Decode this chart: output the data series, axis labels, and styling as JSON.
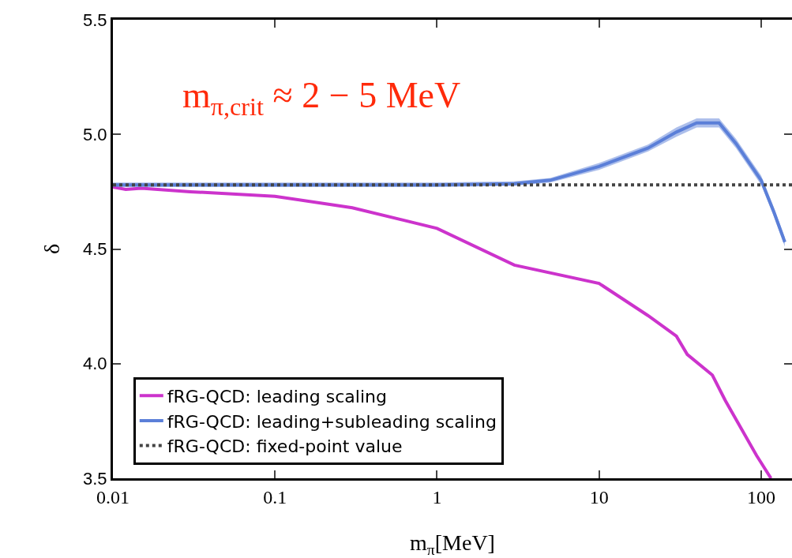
{
  "chart_data": {
    "type": "line",
    "xlabel": "m$_{π}$[MeV]",
    "ylabel": "δ",
    "log": "x",
    "xlim": [
      0.01,
      155
    ],
    "xticks": [
      0.01,
      0.1,
      1,
      10,
      100
    ],
    "ylim": [
      3.5,
      5.5
    ],
    "yticks": [
      3.5,
      {
        "value": 4,
        "label": "4.0"
      },
      4.5,
      {
        "value": 5,
        "label": "5.0"
      },
      5.5
    ],
    "grid": false,
    "legend": "bottom left",
    "line_style": "solid",
    "marker": "none",
    "annotations": [
      "m$_{π,crit}$ ≈ 2 − 5 MeV"
    ],
    "series": [
      {
        "name": "fRG-QCD: leading scaling",
        "color": "#cc33cc",
        "x": [
          0.01,
          0.012,
          0.015,
          0.03,
          0.1,
          0.3,
          1,
          3,
          10,
          20,
          30,
          35,
          50,
          60,
          93.6,
          115
        ],
        "values": [
          4.77,
          4.76,
          4.765,
          4.75,
          4.73,
          4.68,
          4.59,
          4.43,
          4.35,
          4.21,
          4.12,
          4.04,
          3.95,
          3.84,
          3.6,
          3.5
        ]
      },
      {
        "name": "fRG-QCD: leading+subleading scaling",
        "color": "#5b7fd8",
        "x": [
          0.01,
          0.1,
          1,
          3,
          5,
          10,
          20,
          30,
          40,
          55,
          70,
          100,
          120,
          140
        ],
        "values": [
          4.78,
          4.78,
          4.78,
          4.785,
          4.8,
          4.86,
          4.94,
          5.01,
          5.05,
          5.05,
          4.96,
          4.8,
          4.66,
          4.53
        ],
        "lower": [
          4.77,
          4.77,
          4.77,
          4.775,
          4.79,
          4.845,
          4.925,
          4.99,
          5.03,
          5.03,
          4.94,
          4.78,
          4.64,
          4.51
        ],
        "upper": [
          4.79,
          4.79,
          4.79,
          4.795,
          4.81,
          4.875,
          4.955,
          5.03,
          5.07,
          5.07,
          4.98,
          4.82,
          4.68,
          4.55
        ]
      },
      {
        "name": "fRG-QCD: fixed-point value",
        "color": "#444444",
        "line_style": "dotted",
        "x": [
          0.01,
          155
        ],
        "values": [
          4.78,
          4.78
        ]
      }
    ]
  }
}
